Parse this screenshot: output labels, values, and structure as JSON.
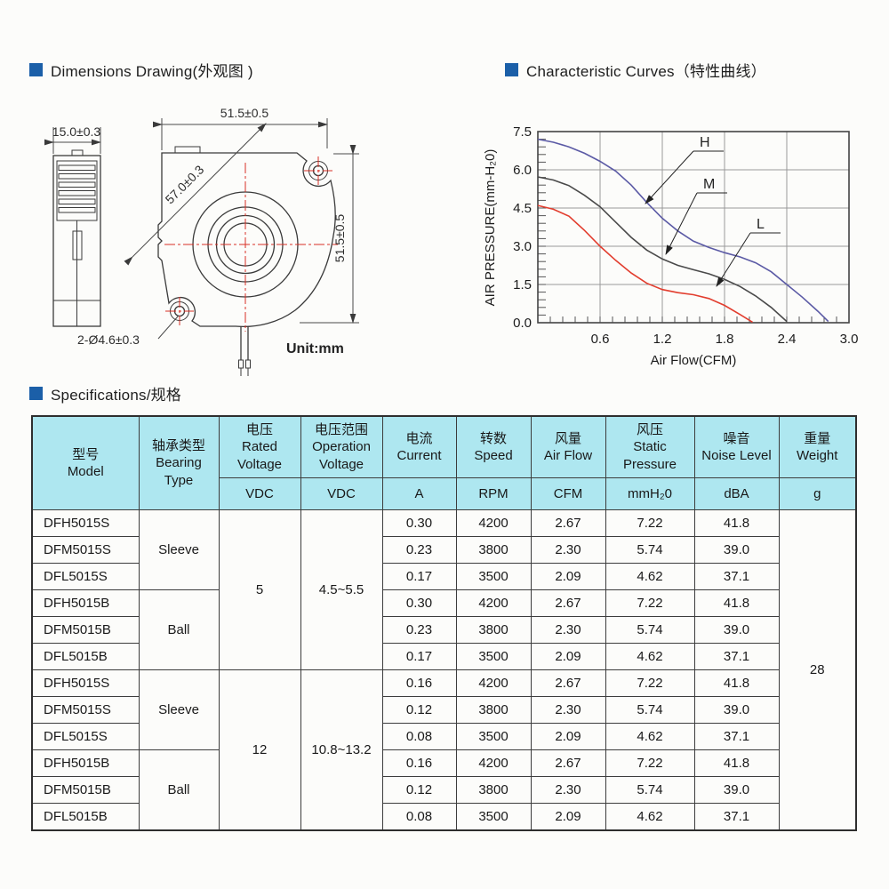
{
  "sections": {
    "dimensions_title": "Dimensions Drawing(外观图 )",
    "curves_title": "Characteristic Curves（特性曲线）",
    "specs_title": "Specifications/规格"
  },
  "drawing": {
    "dim_side_width": "15.0±0.3",
    "dim_top": "51.5±0.5",
    "dim_right": "51.5±0.5",
    "dim_diagonal": "57.0±0.3",
    "dim_holes": "2-Ø4.6±0.3",
    "unit_label": "Unit:mm"
  },
  "chart_data": {
    "type": "line",
    "title": "Characteristic Curves",
    "xlabel": "Air Flow(CFM)",
    "ylabel": "AIR PRESSURE(mm-H₂0)",
    "xlim": [
      0,
      3.0
    ],
    "ylim": [
      0,
      7.5
    ],
    "x_ticks": [
      0.6,
      1.2,
      1.8,
      2.4,
      3.0
    ],
    "y_ticks": [
      0.0,
      1.5,
      3.0,
      4.5,
      6.0,
      7.5
    ],
    "x_tick_labels": [
      "0.6",
      "1.2",
      "1.8",
      "2.4",
      "3.0"
    ],
    "y_tick_labels": [
      "0.0",
      "1.5",
      "3.0",
      "4.5",
      "6.0",
      "7.5"
    ],
    "x_minor_step": 0.12,
    "y_minor_step": 0.3,
    "grid": true,
    "legend_position": "inline-arrows",
    "series": [
      {
        "name": "H",
        "color": "#5b5aa5",
        "points": [
          [
            0,
            7.2
          ],
          [
            0.15,
            7.08
          ],
          [
            0.3,
            6.9
          ],
          [
            0.45,
            6.65
          ],
          [
            0.6,
            6.33
          ],
          [
            0.75,
            5.95
          ],
          [
            0.9,
            5.4
          ],
          [
            1.05,
            4.72
          ],
          [
            1.2,
            4.1
          ],
          [
            1.35,
            3.6
          ],
          [
            1.5,
            3.2
          ],
          [
            1.65,
            2.95
          ],
          [
            1.8,
            2.75
          ],
          [
            1.95,
            2.58
          ],
          [
            2.1,
            2.35
          ],
          [
            2.25,
            2.0
          ],
          [
            2.4,
            1.5
          ],
          [
            2.55,
            1.0
          ],
          [
            2.7,
            0.45
          ],
          [
            2.8,
            0.05
          ]
        ]
      },
      {
        "name": "M",
        "color": "#4a4a4a",
        "points": [
          [
            0,
            5.72
          ],
          [
            0.15,
            5.6
          ],
          [
            0.3,
            5.38
          ],
          [
            0.45,
            5.0
          ],
          [
            0.6,
            4.55
          ],
          [
            0.75,
            3.95
          ],
          [
            0.9,
            3.35
          ],
          [
            1.05,
            2.85
          ],
          [
            1.2,
            2.5
          ],
          [
            1.35,
            2.25
          ],
          [
            1.5,
            2.08
          ],
          [
            1.65,
            1.92
          ],
          [
            1.8,
            1.7
          ],
          [
            1.95,
            1.42
          ],
          [
            2.1,
            1.05
          ],
          [
            2.25,
            0.6
          ],
          [
            2.4,
            0.05
          ]
        ]
      },
      {
        "name": "L",
        "color": "#e23d2e",
        "points": [
          [
            0,
            4.6
          ],
          [
            0.15,
            4.45
          ],
          [
            0.3,
            4.18
          ],
          [
            0.45,
            3.62
          ],
          [
            0.6,
            3.0
          ],
          [
            0.75,
            2.45
          ],
          [
            0.9,
            1.95
          ],
          [
            1.05,
            1.55
          ],
          [
            1.2,
            1.3
          ],
          [
            1.35,
            1.18
          ],
          [
            1.5,
            1.1
          ],
          [
            1.65,
            0.95
          ],
          [
            1.8,
            0.68
          ],
          [
            1.95,
            0.32
          ],
          [
            2.07,
            0.02
          ]
        ]
      }
    ]
  },
  "table": {
    "header": {
      "model_zh": "型号",
      "model_en": "Model",
      "bearing_zh": "轴承类型",
      "bearing_en": "Bearing Type",
      "rated_zh": "电压",
      "rated_en": "Rated Voltage",
      "rated_unit": "VDC",
      "op_zh": "电压范围",
      "op_en": "Operation Voltage",
      "op_unit": "VDC",
      "current_zh": "电流",
      "current_en": "Current",
      "current_unit": "A",
      "speed_zh": "转数",
      "speed_en": "Speed",
      "speed_unit": "RPM",
      "airflow_zh": "风量",
      "airflow_en": "Air Flow",
      "airflow_unit": "CFM",
      "pressure_zh": "风压",
      "pressure_en": "Static Pressure",
      "pressure_unit": "mmH₂0",
      "noise_zh": "噪音",
      "noise_en": "Noise Level",
      "noise_unit": "dBA",
      "weight_zh": "重量",
      "weight_en": "Weight",
      "weight_unit": "g"
    },
    "spans": {
      "sleeve": "Sleeve",
      "ball": "Ball",
      "v5": "5",
      "v5_range": "4.5~5.5",
      "v12": "12",
      "v12_range": "10.8~13.2",
      "weight": "28"
    },
    "rows": [
      {
        "model": "DFH5015S",
        "current": "0.30",
        "speed": "4200",
        "airflow": "2.67",
        "pressure": "7.22",
        "noise": "41.8"
      },
      {
        "model": "DFM5015S",
        "current": "0.23",
        "speed": "3800",
        "airflow": "2.30",
        "pressure": "5.74",
        "noise": "39.0"
      },
      {
        "model": "DFL5015S",
        "current": "0.17",
        "speed": "3500",
        "airflow": "2.09",
        "pressure": "4.62",
        "noise": "37.1"
      },
      {
        "model": "DFH5015B",
        "current": "0.30",
        "speed": "4200",
        "airflow": "2.67",
        "pressure": "7.22",
        "noise": "41.8"
      },
      {
        "model": "DFM5015B",
        "current": "0.23",
        "speed": "3800",
        "airflow": "2.30",
        "pressure": "5.74",
        "noise": "39.0"
      },
      {
        "model": "DFL5015B",
        "current": "0.17",
        "speed": "3500",
        "airflow": "2.09",
        "pressure": "4.62",
        "noise": "37.1"
      },
      {
        "model": "DFH5015S",
        "current": "0.16",
        "speed": "4200",
        "airflow": "2.67",
        "pressure": "7.22",
        "noise": "41.8"
      },
      {
        "model": "DFM5015S",
        "current": "0.12",
        "speed": "3800",
        "airflow": "2.30",
        "pressure": "5.74",
        "noise": "39.0"
      },
      {
        "model": "DFL5015S",
        "current": "0.08",
        "speed": "3500",
        "airflow": "2.09",
        "pressure": "4.62",
        "noise": "37.1"
      },
      {
        "model": "DFH5015B",
        "current": "0.16",
        "speed": "4200",
        "airflow": "2.67",
        "pressure": "7.22",
        "noise": "41.8"
      },
      {
        "model": "DFM5015B",
        "current": "0.12",
        "speed": "3800",
        "airflow": "2.30",
        "pressure": "5.74",
        "noise": "39.0"
      },
      {
        "model": "DFL5015B",
        "current": "0.08",
        "speed": "3500",
        "airflow": "2.09",
        "pressure": "4.62",
        "noise": "37.1"
      }
    ]
  }
}
